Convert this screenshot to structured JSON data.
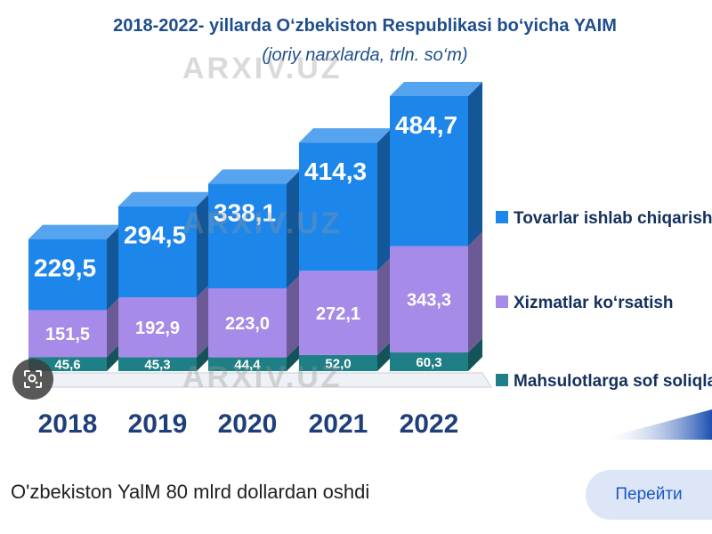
{
  "chart_data": {
    "type": "bar",
    "stacked": true,
    "title": "2018-2022- yillarda O‘zbekiston Respublikasi bo‘yicha YAIM",
    "subtitle": "(joriy narxlarda, trln. so‘m)",
    "categories": [
      "2018",
      "2019",
      "2020",
      "2021",
      "2022"
    ],
    "series": [
      {
        "name": "Mahsulotlarga sof soliqlar",
        "values": [
          45.6,
          45.3,
          44.4,
          52.0,
          60.3
        ],
        "labels": [
          "45,6",
          "45,3",
          "44,4",
          "52,0",
          "60,3"
        ],
        "color": "#1f7f86"
      },
      {
        "name": "Xizmatlar ko‘rsatish",
        "values": [
          151.5,
          192.9,
          223.0,
          272.1,
          343.3
        ],
        "labels": [
          "151,5",
          "192,9",
          "223,0",
          "272,1",
          "343,3"
        ],
        "color": "#a68be8"
      },
      {
        "name": "Tovarlar ishlab chiqarish",
        "values": [
          229.5,
          294.5,
          338.1,
          414.3,
          484.7
        ],
        "labels": [
          "229,5",
          "294,5",
          "338,1",
          "414,3",
          "484,7"
        ],
        "color": "#1d86ea"
      }
    ],
    "legend_position": "right",
    "grid": false
  },
  "caption": "O'zbekiston YalM 80 mlrd dollardan oshdi",
  "button_label": "Перейти",
  "watermark": "ARXIV.UZ",
  "icons": {
    "lens": "google-lens-icon"
  }
}
